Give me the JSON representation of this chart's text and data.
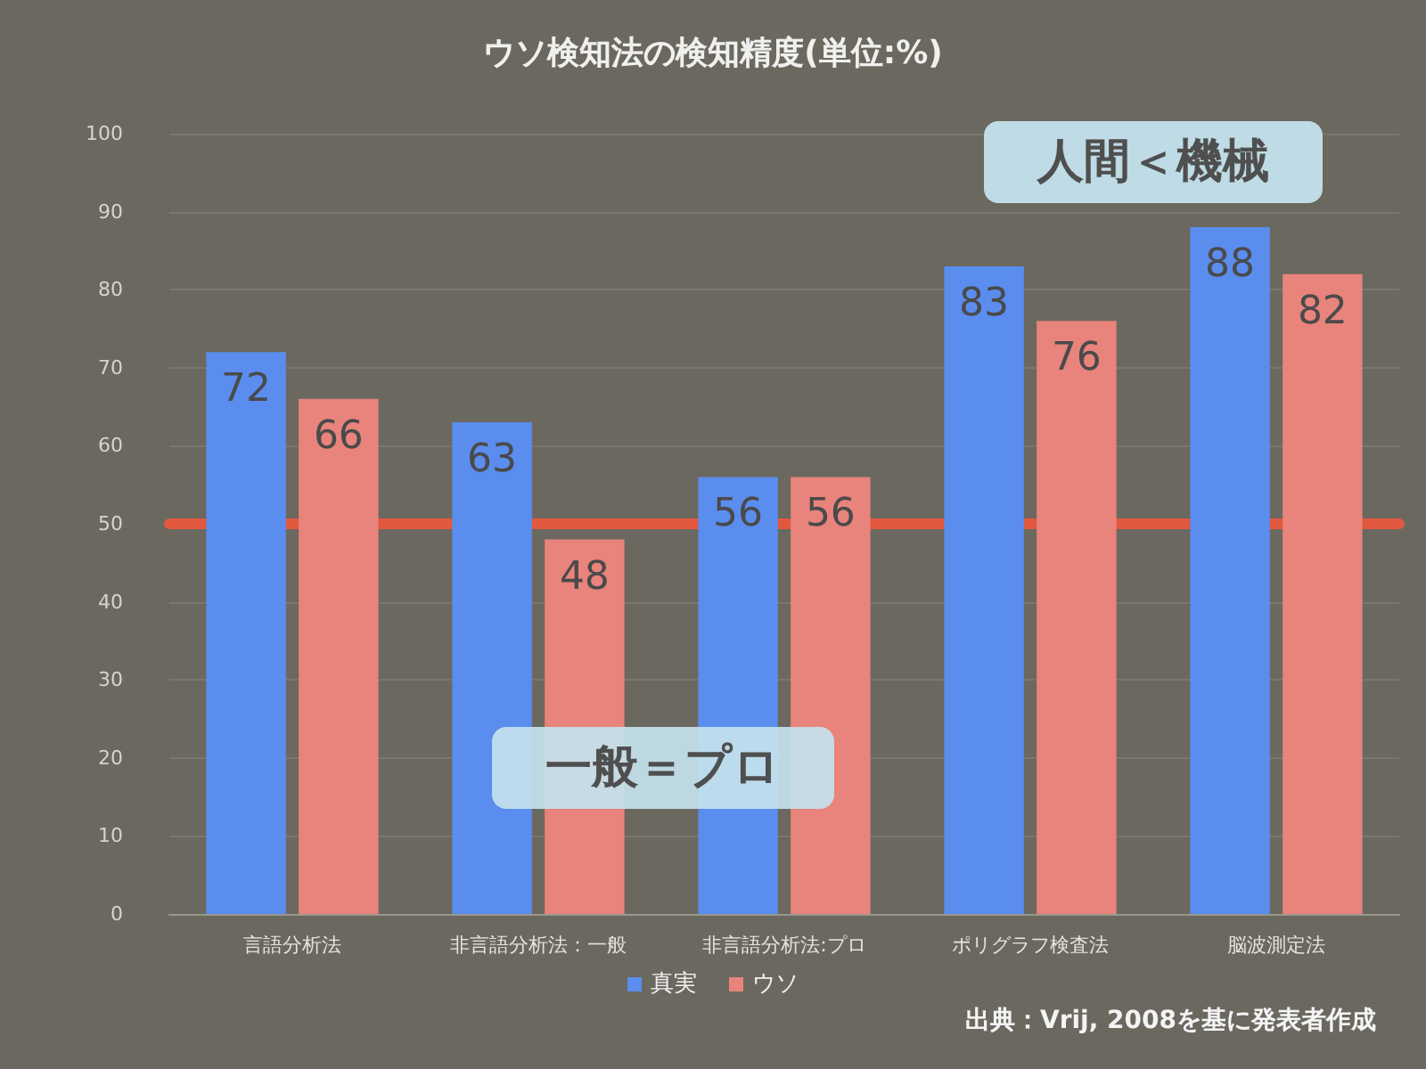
{
  "chart_data": {
    "type": "bar",
    "title": "ウソ検知法の検知精度(単位:%)",
    "categories": [
      "言語分析法",
      "非言語分析法：一般",
      "非言語分析法:プロ",
      "ポリグラフ検査法",
      "脳波測定法"
    ],
    "series": [
      {
        "name": "真実",
        "color": "#5b8def",
        "values": [
          72,
          63,
          56,
          83,
          88
        ]
      },
      {
        "name": "ウソ",
        "color": "#e8847c",
        "values": [
          66,
          48,
          56,
          76,
          82
        ]
      }
    ],
    "ylim": [
      0,
      100
    ],
    "yticks": [
      0,
      10,
      20,
      30,
      40,
      50,
      60,
      70,
      80,
      90,
      100
    ],
    "grid": "y",
    "legend": "bottom",
    "data_labels": true,
    "ref_lines": [
      {
        "axis": "y",
        "value": 50,
        "color": "#e2583f"
      }
    ],
    "annotations": [
      "人間＜機械",
      "一般＝プロ",
      "出典：Vrij, 2008を基に発表者作成"
    ]
  }
}
